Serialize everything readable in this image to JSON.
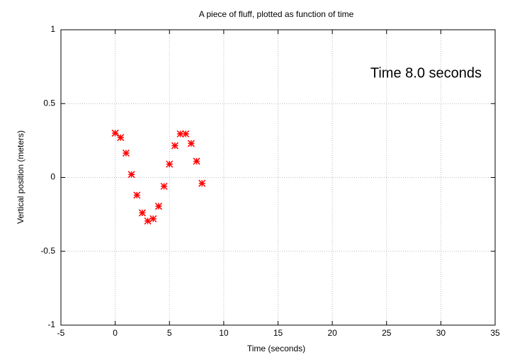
{
  "chart_data": {
    "type": "scatter",
    "title": "A piece of fluff, plotted as function of time",
    "xlabel": "Time (seconds)",
    "ylabel": "Vertical position (meters)",
    "annotation": "Time  8.0 seconds",
    "x": [
      0,
      0.5,
      1,
      1.5,
      2,
      2.5,
      3,
      3.5,
      4,
      4.5,
      5,
      5.5,
      6,
      6.5,
      7,
      7.5,
      8
    ],
    "values": [
      0.3,
      0.27,
      0.165,
      0.02,
      -0.12,
      -0.24,
      -0.295,
      -0.28,
      -0.195,
      -0.06,
      0.09,
      0.215,
      0.295,
      0.295,
      0.23,
      0.11,
      -0.04
    ],
    "color": "#ff0000",
    "xlim": [
      -5,
      35
    ],
    "ylim": [
      -1,
      1
    ],
    "xticks": [
      -5,
      0,
      5,
      10,
      15,
      20,
      25,
      30,
      35
    ],
    "yticks": [
      -1,
      -0.5,
      0,
      0.5,
      1
    ],
    "grid": true
  }
}
